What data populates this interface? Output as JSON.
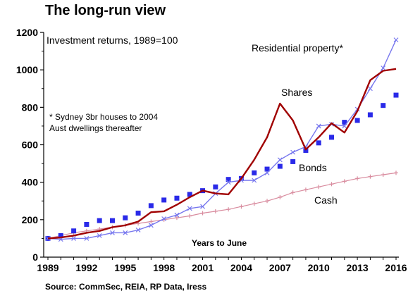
{
  "chart_data": {
    "type": "line",
    "title": "The long-run view",
    "subtitle": "Investment returns, 1989=100",
    "xlabel": "Years to June",
    "ylabel": "",
    "source": "Source: CommSec, REIA, RP Data, Iress",
    "note_lines": [
      "* Sydney 3br houses to 2004",
      "Aust dwellings thereafter"
    ],
    "xlim": [
      1989,
      2016
    ],
    "ylim": [
      0,
      1200
    ],
    "x_ticks": [
      "1989",
      "1992",
      "1995",
      "1998",
      "2001",
      "2004",
      "2007",
      "2010",
      "2013",
      "2016"
    ],
    "y_ticks": [
      "0",
      "200",
      "400",
      "600",
      "800",
      "1000",
      "1200"
    ],
    "grid": false,
    "colors": {
      "shares": "#a00000",
      "property": "#7777ee",
      "bonds": "#2a2ae8",
      "cash": "#d98c9f",
      "axis": "#000000"
    },
    "series": [
      {
        "name": "Residential property*",
        "marker": "x",
        "x": [
          1989,
          1990,
          1991,
          1992,
          1993,
          1994,
          1995,
          1996,
          1997,
          1998,
          1999,
          2000,
          2001,
          2002,
          2003,
          2004,
          2005,
          2006,
          2007,
          2008,
          2009,
          2010,
          2011,
          2012,
          2013,
          2014,
          2015,
          2016
        ],
        "values": [
          100,
          95,
          100,
          100,
          115,
          130,
          130,
          145,
          170,
          205,
          225,
          260,
          270,
          340,
          400,
          410,
          410,
          450,
          520,
          560,
          590,
          700,
          710,
          700,
          790,
          900,
          1010,
          1160
        ]
      },
      {
        "name": "Shares",
        "marker": "none",
        "x": [
          1989,
          1990,
          1991,
          1992,
          1993,
          1994,
          1995,
          1996,
          1997,
          1998,
          1999,
          2000,
          2001,
          2002,
          2003,
          2004,
          2005,
          2006,
          2007,
          2008,
          2009,
          2010,
          2011,
          2012,
          2013,
          2014,
          2015,
          2016
        ],
        "values": [
          100,
          105,
          115,
          130,
          140,
          160,
          170,
          190,
          240,
          245,
          280,
          320,
          355,
          340,
          335,
          420,
          520,
          640,
          820,
          730,
          575,
          640,
          715,
          665,
          780,
          945,
          995,
          1005
        ]
      },
      {
        "name": "Bonds",
        "marker": "square",
        "x": [
          1989,
          1990,
          1991,
          1992,
          1993,
          1994,
          1995,
          1996,
          1997,
          1998,
          1999,
          2000,
          2001,
          2002,
          2003,
          2004,
          2005,
          2006,
          2007,
          2008,
          2009,
          2010,
          2011,
          2012,
          2013,
          2014,
          2015,
          2016
        ],
        "values": [
          100,
          115,
          140,
          175,
          195,
          195,
          210,
          235,
          275,
          305,
          315,
          335,
          355,
          375,
          415,
          420,
          450,
          470,
          485,
          510,
          570,
          610,
          640,
          720,
          730,
          760,
          810,
          865
        ]
      },
      {
        "name": "Cash",
        "marker": "plus",
        "x": [
          1989,
          1990,
          1991,
          1992,
          1993,
          1994,
          1995,
          1996,
          1997,
          1998,
          1999,
          2000,
          2001,
          2002,
          2003,
          2004,
          2005,
          2006,
          2007,
          2008,
          2009,
          2010,
          2011,
          2012,
          2013,
          2014,
          2015,
          2016
        ],
        "values": [
          100,
          115,
          130,
          140,
          150,
          160,
          170,
          180,
          190,
          200,
          210,
          220,
          235,
          245,
          255,
          270,
          285,
          300,
          320,
          345,
          360,
          375,
          390,
          405,
          420,
          430,
          440,
          450
        ]
      }
    ],
    "series_labels": [
      "Residential property*",
      "Shares",
      "Bonds",
      "Cash"
    ]
  }
}
